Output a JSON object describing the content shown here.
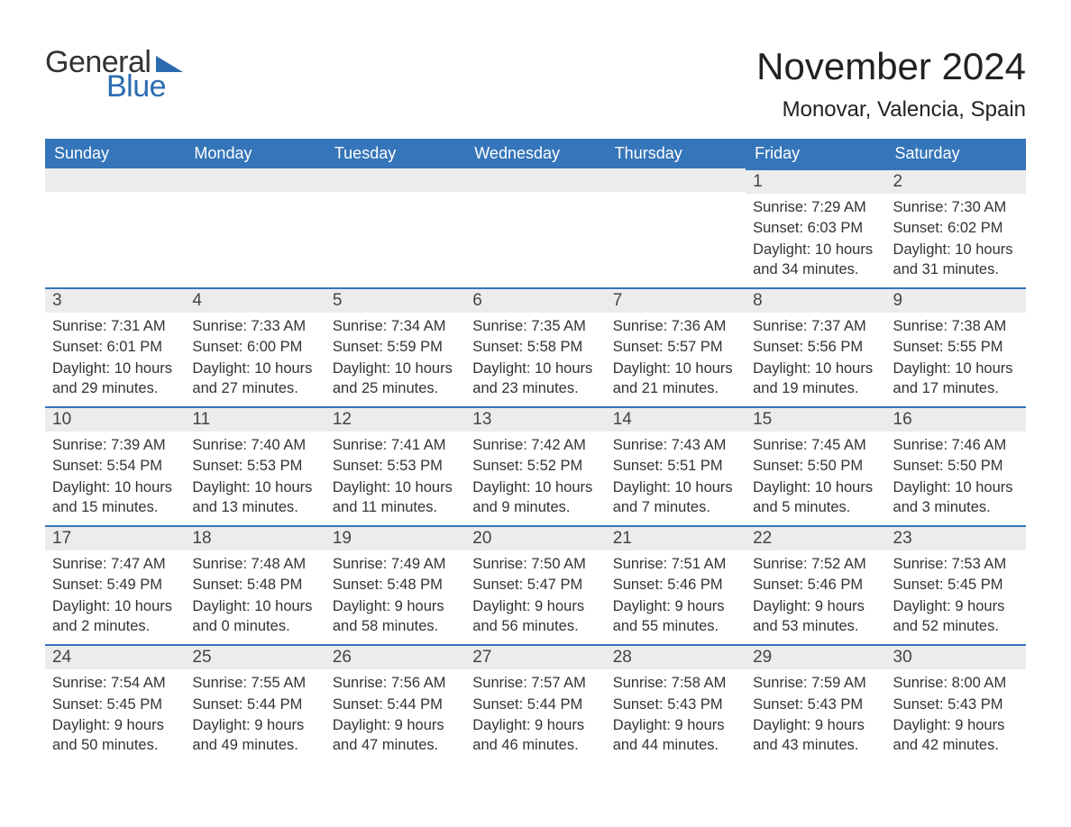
{
  "brand": {
    "word1": "General",
    "word2": "Blue",
    "brand_color": "#2b6cb0"
  },
  "title": "November 2024",
  "subtitle": "Monovar, Valencia, Spain",
  "header_bg": "#3575b9",
  "header_text_color": "#ffffff",
  "daynum_bg": "#ececec",
  "divider_color": "#3575b9",
  "body_text_color": "#333333",
  "columns": [
    "Sunday",
    "Monday",
    "Tuesday",
    "Wednesday",
    "Thursday",
    "Friday",
    "Saturday"
  ],
  "label_sunrise": "Sunrise: ",
  "label_sunset": "Sunset: ",
  "label_daylight": "Daylight: ",
  "weeks": [
    [
      null,
      null,
      null,
      null,
      null,
      {
        "n": "1",
        "sunrise": "7:29 AM",
        "sunset": "6:03 PM",
        "daylight": "10 hours and 34 minutes."
      },
      {
        "n": "2",
        "sunrise": "7:30 AM",
        "sunset": "6:02 PM",
        "daylight": "10 hours and 31 minutes."
      }
    ],
    [
      {
        "n": "3",
        "sunrise": "7:31 AM",
        "sunset": "6:01 PM",
        "daylight": "10 hours and 29 minutes."
      },
      {
        "n": "4",
        "sunrise": "7:33 AM",
        "sunset": "6:00 PM",
        "daylight": "10 hours and 27 minutes."
      },
      {
        "n": "5",
        "sunrise": "7:34 AM",
        "sunset": "5:59 PM",
        "daylight": "10 hours and 25 minutes."
      },
      {
        "n": "6",
        "sunrise": "7:35 AM",
        "sunset": "5:58 PM",
        "daylight": "10 hours and 23 minutes."
      },
      {
        "n": "7",
        "sunrise": "7:36 AM",
        "sunset": "5:57 PM",
        "daylight": "10 hours and 21 minutes."
      },
      {
        "n": "8",
        "sunrise": "7:37 AM",
        "sunset": "5:56 PM",
        "daylight": "10 hours and 19 minutes."
      },
      {
        "n": "9",
        "sunrise": "7:38 AM",
        "sunset": "5:55 PM",
        "daylight": "10 hours and 17 minutes."
      }
    ],
    [
      {
        "n": "10",
        "sunrise": "7:39 AM",
        "sunset": "5:54 PM",
        "daylight": "10 hours and 15 minutes."
      },
      {
        "n": "11",
        "sunrise": "7:40 AM",
        "sunset": "5:53 PM",
        "daylight": "10 hours and 13 minutes."
      },
      {
        "n": "12",
        "sunrise": "7:41 AM",
        "sunset": "5:53 PM",
        "daylight": "10 hours and 11 minutes."
      },
      {
        "n": "13",
        "sunrise": "7:42 AM",
        "sunset": "5:52 PM",
        "daylight": "10 hours and 9 minutes."
      },
      {
        "n": "14",
        "sunrise": "7:43 AM",
        "sunset": "5:51 PM",
        "daylight": "10 hours and 7 minutes."
      },
      {
        "n": "15",
        "sunrise": "7:45 AM",
        "sunset": "5:50 PM",
        "daylight": "10 hours and 5 minutes."
      },
      {
        "n": "16",
        "sunrise": "7:46 AM",
        "sunset": "5:50 PM",
        "daylight": "10 hours and 3 minutes."
      }
    ],
    [
      {
        "n": "17",
        "sunrise": "7:47 AM",
        "sunset": "5:49 PM",
        "daylight": "10 hours and 2 minutes."
      },
      {
        "n": "18",
        "sunrise": "7:48 AM",
        "sunset": "5:48 PM",
        "daylight": "10 hours and 0 minutes."
      },
      {
        "n": "19",
        "sunrise": "7:49 AM",
        "sunset": "5:48 PM",
        "daylight": "9 hours and 58 minutes."
      },
      {
        "n": "20",
        "sunrise": "7:50 AM",
        "sunset": "5:47 PM",
        "daylight": "9 hours and 56 minutes."
      },
      {
        "n": "21",
        "sunrise": "7:51 AM",
        "sunset": "5:46 PM",
        "daylight": "9 hours and 55 minutes."
      },
      {
        "n": "22",
        "sunrise": "7:52 AM",
        "sunset": "5:46 PM",
        "daylight": "9 hours and 53 minutes."
      },
      {
        "n": "23",
        "sunrise": "7:53 AM",
        "sunset": "5:45 PM",
        "daylight": "9 hours and 52 minutes."
      }
    ],
    [
      {
        "n": "24",
        "sunrise": "7:54 AM",
        "sunset": "5:45 PM",
        "daylight": "9 hours and 50 minutes."
      },
      {
        "n": "25",
        "sunrise": "7:55 AM",
        "sunset": "5:44 PM",
        "daylight": "9 hours and 49 minutes."
      },
      {
        "n": "26",
        "sunrise": "7:56 AM",
        "sunset": "5:44 PM",
        "daylight": "9 hours and 47 minutes."
      },
      {
        "n": "27",
        "sunrise": "7:57 AM",
        "sunset": "5:44 PM",
        "daylight": "9 hours and 46 minutes."
      },
      {
        "n": "28",
        "sunrise": "7:58 AM",
        "sunset": "5:43 PM",
        "daylight": "9 hours and 44 minutes."
      },
      {
        "n": "29",
        "sunrise": "7:59 AM",
        "sunset": "5:43 PM",
        "daylight": "9 hours and 43 minutes."
      },
      {
        "n": "30",
        "sunrise": "8:00 AM",
        "sunset": "5:43 PM",
        "daylight": "9 hours and 42 minutes."
      }
    ]
  ]
}
